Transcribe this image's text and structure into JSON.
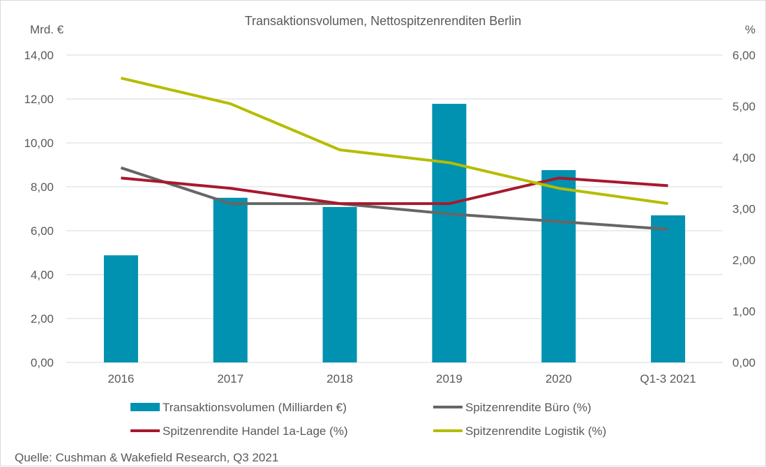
{
  "chart_data": {
    "type": "bar+line",
    "title": "Transaktionsvolumen, Nettospitzenrenditen Berlin",
    "ylabel_left": "Mrd. €",
    "ylabel_right": "%",
    "categories": [
      "2016",
      "2017",
      "2018",
      "2019",
      "2020",
      "Q1-3 2021"
    ],
    "ylim_left": [
      0,
      14
    ],
    "ylim_right": [
      0,
      6
    ],
    "yticks_left": [
      "0,00",
      "2,00",
      "4,00",
      "6,00",
      "8,00",
      "10,00",
      "12,00",
      "14,00"
    ],
    "yticks_right": [
      "0,00",
      "1,00",
      "2,00",
      "3,00",
      "4,00",
      "5,00",
      "6,00"
    ],
    "grid": true,
    "bars": {
      "name": "Transaktionsvolumen (Milliarden €)",
      "axis": "left",
      "color": "#0092b0",
      "values": [
        4.88,
        7.5,
        7.08,
        11.78,
        8.76,
        6.7
      ]
    },
    "series": [
      {
        "name": "Spitzenrendite Büro (%)",
        "axis": "right",
        "color": "#666666",
        "values": [
          3.8,
          3.1,
          3.1,
          2.9,
          2.75,
          2.6
        ]
      },
      {
        "name": "Spitzenrendite Handel 1a-Lage (%)",
        "axis": "right",
        "color": "#a6192e",
        "values": [
          3.6,
          3.4,
          3.1,
          3.1,
          3.6,
          3.45
        ]
      },
      {
        "name": "Spitzenrendite Logistik (%)",
        "axis": "right",
        "color": "#b5bd00",
        "values": [
          5.55,
          5.05,
          4.15,
          3.9,
          3.4,
          3.1
        ]
      }
    ],
    "legend_position": "bottom"
  },
  "source": "Quelle: Cushman & Wakefield Research, Q3 2021"
}
